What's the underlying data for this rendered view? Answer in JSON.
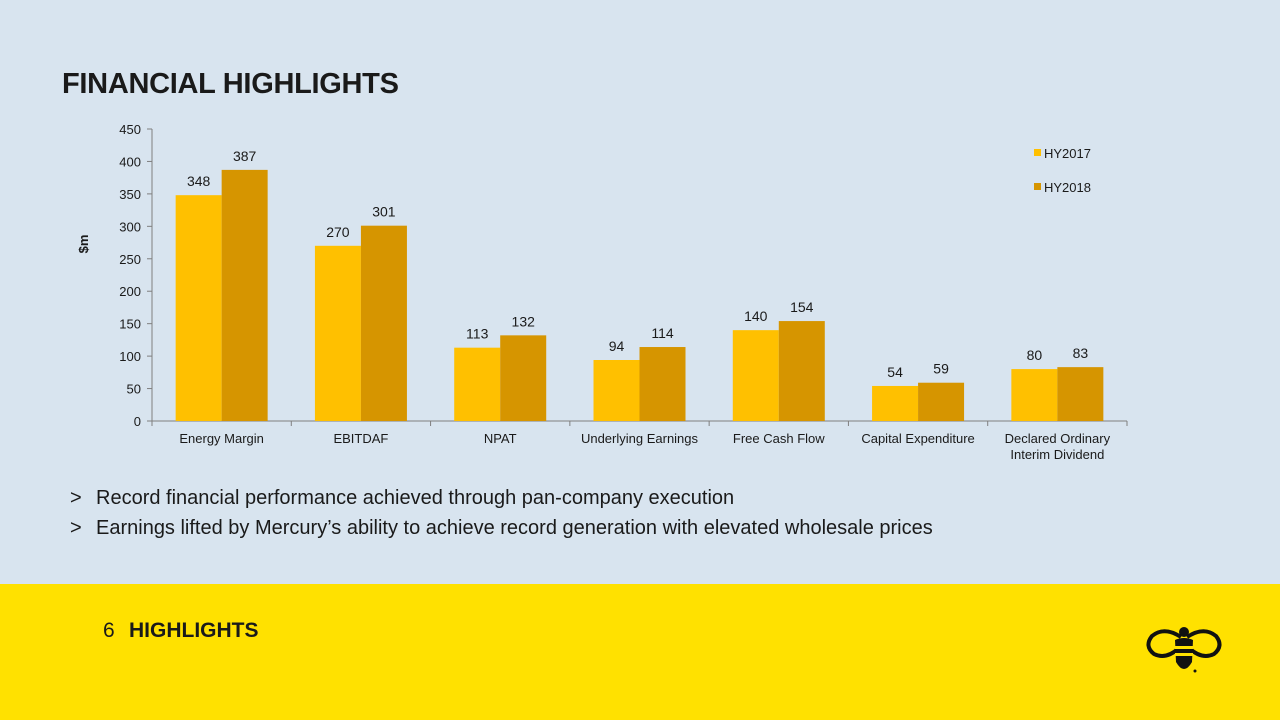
{
  "page": {
    "title": "FINANCIAL HIGHLIGHTS",
    "bullets": [
      {
        "marker": ">",
        "text": "Record financial performance achieved through pan-company execution"
      },
      {
        "marker": ">",
        "text": "Earnings lifted by Mercury’s ability to achieve record generation with elevated wholesale prices"
      }
    ],
    "footer": {
      "page_number": "6",
      "section": "HIGHLIGHTS"
    }
  },
  "chart_data": {
    "type": "bar",
    "ylabel": "$m",
    "ylim": [
      0,
      450
    ],
    "yticks": [
      0,
      50,
      100,
      150,
      200,
      250,
      300,
      350,
      400,
      450
    ],
    "categories": [
      "Energy Margin",
      "EBITDAF",
      "NPAT",
      "Underlying Earnings",
      "Free Cash Flow",
      "Capital Expenditure",
      "Declared Ordinary Interim Dividend"
    ],
    "category_lines": [
      [
        "Energy Margin"
      ],
      [
        "EBITDAF"
      ],
      [
        "NPAT"
      ],
      [
        "Underlying Earnings"
      ],
      [
        "Free Cash Flow"
      ],
      [
        "Capital Expenditure"
      ],
      [
        "Declared Ordinary",
        "Interim Dividend"
      ]
    ],
    "series": [
      {
        "name": "HY2017",
        "color": "#ffc000",
        "values": [
          348,
          270,
          113,
          94,
          140,
          54,
          80
        ]
      },
      {
        "name": "HY2018",
        "color": "#d69500",
        "values": [
          387,
          301,
          132,
          114,
          154,
          59,
          83
        ]
      }
    ],
    "legend_position": "top-right",
    "grid": false,
    "data_labels": true
  }
}
